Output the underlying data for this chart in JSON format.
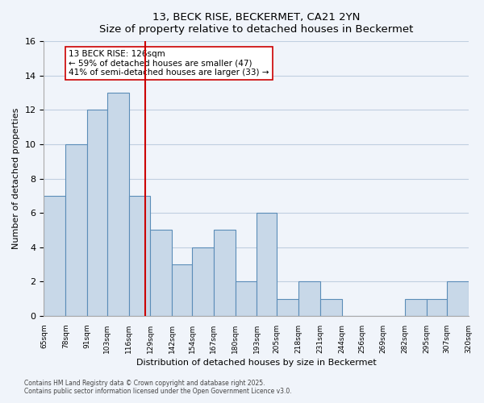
{
  "title": "13, BECK RISE, BECKERMET, CA21 2YN",
  "subtitle": "Size of property relative to detached houses in Beckermet",
  "xlabel": "Distribution of detached houses by size in Beckermet",
  "ylabel": "Number of detached properties",
  "bin_labels": [
    "65sqm",
    "78sqm",
    "91sqm",
    "103sqm",
    "116sqm",
    "129sqm",
    "142sqm",
    "154sqm",
    "167sqm",
    "180sqm",
    "193sqm",
    "205sqm",
    "218sqm",
    "231sqm",
    "244sqm",
    "256sqm",
    "269sqm",
    "282sqm",
    "295sqm",
    "307sqm",
    "320sqm"
  ],
  "bin_edges": [
    65,
    78,
    91,
    103,
    116,
    129,
    142,
    154,
    167,
    180,
    193,
    205,
    218,
    231,
    244,
    256,
    269,
    282,
    295,
    307,
    320
  ],
  "counts": [
    7,
    10,
    12,
    13,
    7,
    5,
    3,
    4,
    5,
    2,
    6,
    1,
    2,
    1,
    0,
    0,
    0,
    1,
    1,
    2
  ],
  "bar_color": "#c8d8e8",
  "bar_edge_color": "#5b8db8",
  "grid_color": "#c0cfe0",
  "bg_color": "#f0f4fa",
  "vline_x": 126,
  "vline_color": "#cc0000",
  "annotation_text": "13 BECK RISE: 126sqm\n← 59% of detached houses are smaller (47)\n41% of semi-detached houses are larger (33) →",
  "annotation_box_color": "#ffffff",
  "annotation_box_edge": "#cc0000",
  "ylim": [
    0,
    16
  ],
  "yticks": [
    0,
    2,
    4,
    6,
    8,
    10,
    12,
    14,
    16
  ],
  "footnote1": "Contains HM Land Registry data © Crown copyright and database right 2025.",
  "footnote2": "Contains public sector information licensed under the Open Government Licence v3.0."
}
